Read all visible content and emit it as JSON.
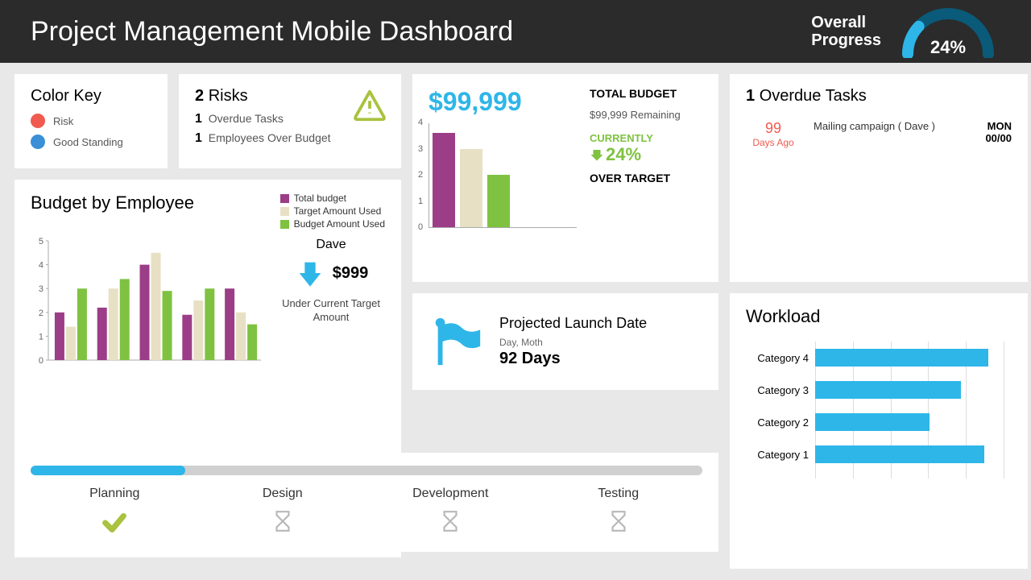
{
  "header": {
    "title": "Project Management Mobile Dashboard",
    "progress_label": "Overall\nProgress",
    "progress_pct": 24,
    "progress_text": "24%",
    "gauge_bg": "#0a5a7a",
    "gauge_fg": "#2eb6e8"
  },
  "color_key": {
    "title": "Color Key",
    "items": [
      {
        "label": "Risk",
        "color": "#f05a4f"
      },
      {
        "label": "Good Standing",
        "color": "#3a8fd6"
      }
    ]
  },
  "risks": {
    "count": 2,
    "title_suffix": "Risks",
    "lines": [
      {
        "n": "1",
        "text": "Overdue Tasks"
      },
      {
        "n": "1",
        "text": "Employees Over Budget"
      }
    ],
    "icon_color": "#a9c23f"
  },
  "budget_employee": {
    "title": "Budget by Employee",
    "legend": [
      {
        "label": "Total budget",
        "color": "#9c3d87"
      },
      {
        "label": "Target Amount Used",
        "color": "#e8e0c4"
      },
      {
        "label": "Budget Amount Used",
        "color": "#7fc241"
      }
    ],
    "ylim": [
      0,
      5
    ],
    "ytick_step": 1,
    "groups": [
      {
        "total": 2.0,
        "target": 1.4,
        "used": 3.0
      },
      {
        "total": 2.2,
        "target": 3.0,
        "used": 3.4
      },
      {
        "total": 4.0,
        "target": 4.5,
        "used": 2.9
      },
      {
        "total": 1.9,
        "target": 2.5,
        "used": 3.0
      },
      {
        "total": 3.0,
        "target": 2.0,
        "used": 1.5
      }
    ],
    "callout": {
      "name": "Dave",
      "arrow_color": "#2eb6e8",
      "amount": "$999",
      "note": "Under Current Target Amount"
    }
  },
  "phases": {
    "progress_pct": 23,
    "bar_bg": "#d0d0d0",
    "bar_fg": "#2eb6e8",
    "items": [
      {
        "label": "Planning",
        "status": "done",
        "icon_color": "#a9c23f"
      },
      {
        "label": "Design",
        "status": "pending",
        "icon_color": "#b8b8b8"
      },
      {
        "label": "Development",
        "status": "pending",
        "icon_color": "#b8b8b8"
      },
      {
        "label": "Testing",
        "status": "pending",
        "icon_color": "#b8b8b8"
      }
    ]
  },
  "budget": {
    "amount": "$99,999",
    "amount_color": "#2eb6e8",
    "heading": "TOTAL BUDGET",
    "remaining": "$99,999 Remaining",
    "currently_label": "CURRENTLY",
    "currently_color": "#7fc241",
    "pct": "24%",
    "over_label": "OVER TARGET",
    "chart": {
      "ylim": [
        0,
        4
      ],
      "ytick_step": 1,
      "bars": [
        {
          "value": 3.6,
          "color": "#9c3d87"
        },
        {
          "value": 3.0,
          "color": "#e8e0c4"
        },
        {
          "value": 2.0,
          "color": "#7fc241"
        }
      ]
    }
  },
  "launch": {
    "flag_color": "#2eb6e8",
    "title": "Projected Launch Date",
    "sub": "Day, Moth",
    "days": "92 Days"
  },
  "overdue": {
    "count": 1,
    "title_suffix": "Overdue Tasks",
    "row": {
      "n": "99",
      "n_color": "#f05a4f",
      "n_sub": "Days Ago",
      "task": "Mailing campaign ( Dave )",
      "day": "MON",
      "date": "00/00"
    }
  },
  "workload": {
    "title": "Workload",
    "bar_color": "#2eb6e8",
    "xlim": [
      0,
      5
    ],
    "grid_positions": [
      0,
      1,
      2,
      3,
      4,
      5
    ],
    "rows": [
      {
        "label": "Category 4",
        "value": 4.4
      },
      {
        "label": "Category 3",
        "value": 3.7
      },
      {
        "label": "Category 2",
        "value": 2.9
      },
      {
        "label": "Category 1",
        "value": 4.3
      }
    ]
  }
}
